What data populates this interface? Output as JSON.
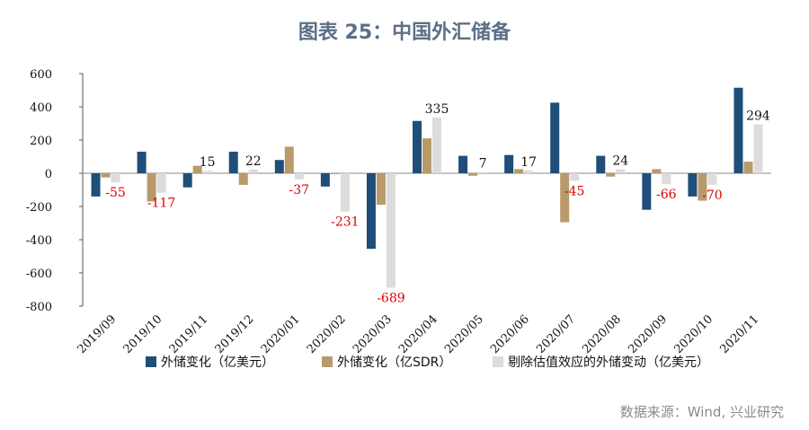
{
  "page": {
    "title": "图表 25：中国外汇储备",
    "source": "数据来源：Wind, 兴业研究"
  },
  "chart_data": {
    "type": "bar",
    "categories": [
      "2019/09",
      "2019/10",
      "2019/11",
      "2019/12",
      "2020/01",
      "2020/02",
      "2020/03",
      "2020/04",
      "2020/05",
      "2020/06",
      "2020/07",
      "2020/08",
      "2020/09",
      "2020/10",
      "2020/11"
    ],
    "ylim": [
      -800,
      600
    ],
    "yticks": [
      -800,
      -600,
      -400,
      -200,
      0,
      200,
      400,
      600
    ],
    "grid": false,
    "legend_position": "bottom",
    "series": [
      {
        "name": "外储变化（亿美元）",
        "color": "#1f4e79",
        "values": [
          -140,
          130,
          -85,
          130,
          80,
          -80,
          -455,
          315,
          105,
          110,
          425,
          105,
          -220,
          -140,
          515
        ]
      },
      {
        "name": "外储变化（亿SDR）",
        "color": "#b99a6a",
        "values": [
          -25,
          -170,
          45,
          -70,
          160,
          -5,
          -190,
          210,
          -15,
          25,
          -295,
          -20,
          25,
          -165,
          70
        ]
      },
      {
        "name": "剔除估值效应的外储变动（亿美元）",
        "color": "#dcdcdc",
        "values": [
          -55,
          -117,
          15,
          22,
          -37,
          -231,
          -689,
          335,
          7,
          17,
          -45,
          24,
          -66,
          -70,
          294
        ]
      }
    ],
    "data_labels": [
      "-55",
      "-117",
      "15",
      "22",
      "-37",
      "-231",
      "-689",
      "335",
      "7",
      "17",
      "-45",
      "24",
      "-66",
      "-70",
      "294"
    ],
    "label_colors": {
      "negative": "#e00000",
      "positive": "#111111"
    }
  }
}
